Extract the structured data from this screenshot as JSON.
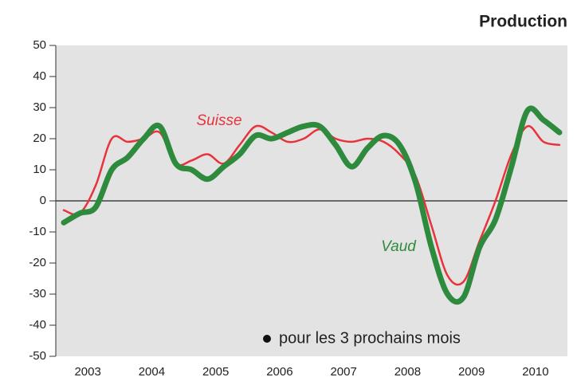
{
  "chart_data": {
    "type": "line",
    "title": "Production",
    "categories": [
      null,
      "2003",
      null,
      null,
      null,
      "2004",
      null,
      null,
      null,
      "2005",
      null,
      null,
      null,
      "2006",
      null,
      null,
      null,
      "2007",
      null,
      null,
      null,
      "2008",
      null,
      null,
      null,
      "2009",
      null,
      null,
      null,
      "2010",
      null,
      null
    ],
    "series": [
      {
        "name": "Suisse",
        "color": "#e8323c",
        "values": [
          -3,
          -4,
          5,
          20,
          19,
          20,
          22,
          12,
          13,
          15,
          12,
          18,
          24,
          22,
          19,
          20,
          23,
          20,
          19,
          20,
          19,
          15,
          8,
          -8,
          -24,
          -26,
          -13,
          0,
          15,
          24,
          19,
          18
        ]
      },
      {
        "name": "Vaud",
        "color": "#2e8b3e",
        "values": [
          -7,
          -4,
          -2,
          10,
          14,
          20,
          24,
          12,
          10,
          7,
          11,
          15,
          21,
          20,
          22,
          24,
          24,
          18,
          11,
          17,
          21,
          18,
          6,
          -15,
          -30,
          -31,
          -15,
          -6,
          11,
          29,
          26,
          22
        ]
      }
    ],
    "annotation": "pour les 3 prochains mois",
    "ylim": [
      -50,
      50
    ],
    "yticks": [
      -50,
      -40,
      -30,
      -20,
      -10,
      0,
      10,
      20,
      30,
      40,
      50
    ],
    "grid": false
  }
}
